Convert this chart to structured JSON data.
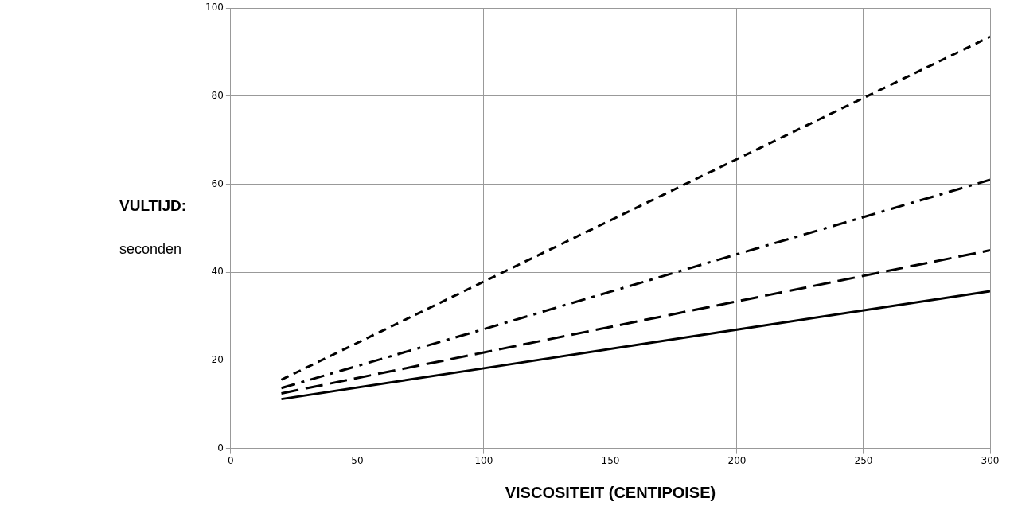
{
  "chart_data": {
    "type": "line",
    "xlabel": "VISCOSITEIT (CENTIPOISE)",
    "ylabel": "VULTIJD:\nseconden",
    "xlim": [
      0,
      300
    ],
    "xticks": [
      0,
      50,
      100,
      150,
      200,
      250,
      300
    ],
    "ylim": [
      0,
      100
    ],
    "yticks": [
      0,
      20,
      40,
      60,
      80,
      100
    ],
    "grid": true,
    "marker": "none",
    "series": [
      {
        "color": "#000000",
        "line_style": "dashed",
        "x": [
          20,
          100,
          200,
          300
        ],
        "values": [
          15.6,
          37.9,
          65.7,
          93.5
        ]
      },
      {
        "color": "#000000",
        "line_style": "dashdot",
        "x": [
          20,
          100,
          200,
          300
        ],
        "values": [
          13.7,
          27.1,
          44.1,
          61.0
        ]
      },
      {
        "color": "#000000",
        "line_style": "longdashed",
        "x": [
          20,
          100,
          200,
          300
        ],
        "values": [
          12.5,
          21.8,
          33.4,
          45.0
        ]
      },
      {
        "color": "#000000",
        "line_style": "solid",
        "x": [
          20,
          100,
          200,
          300
        ],
        "values": [
          11.2,
          18.2,
          27.0,
          35.7
        ]
      }
    ]
  }
}
